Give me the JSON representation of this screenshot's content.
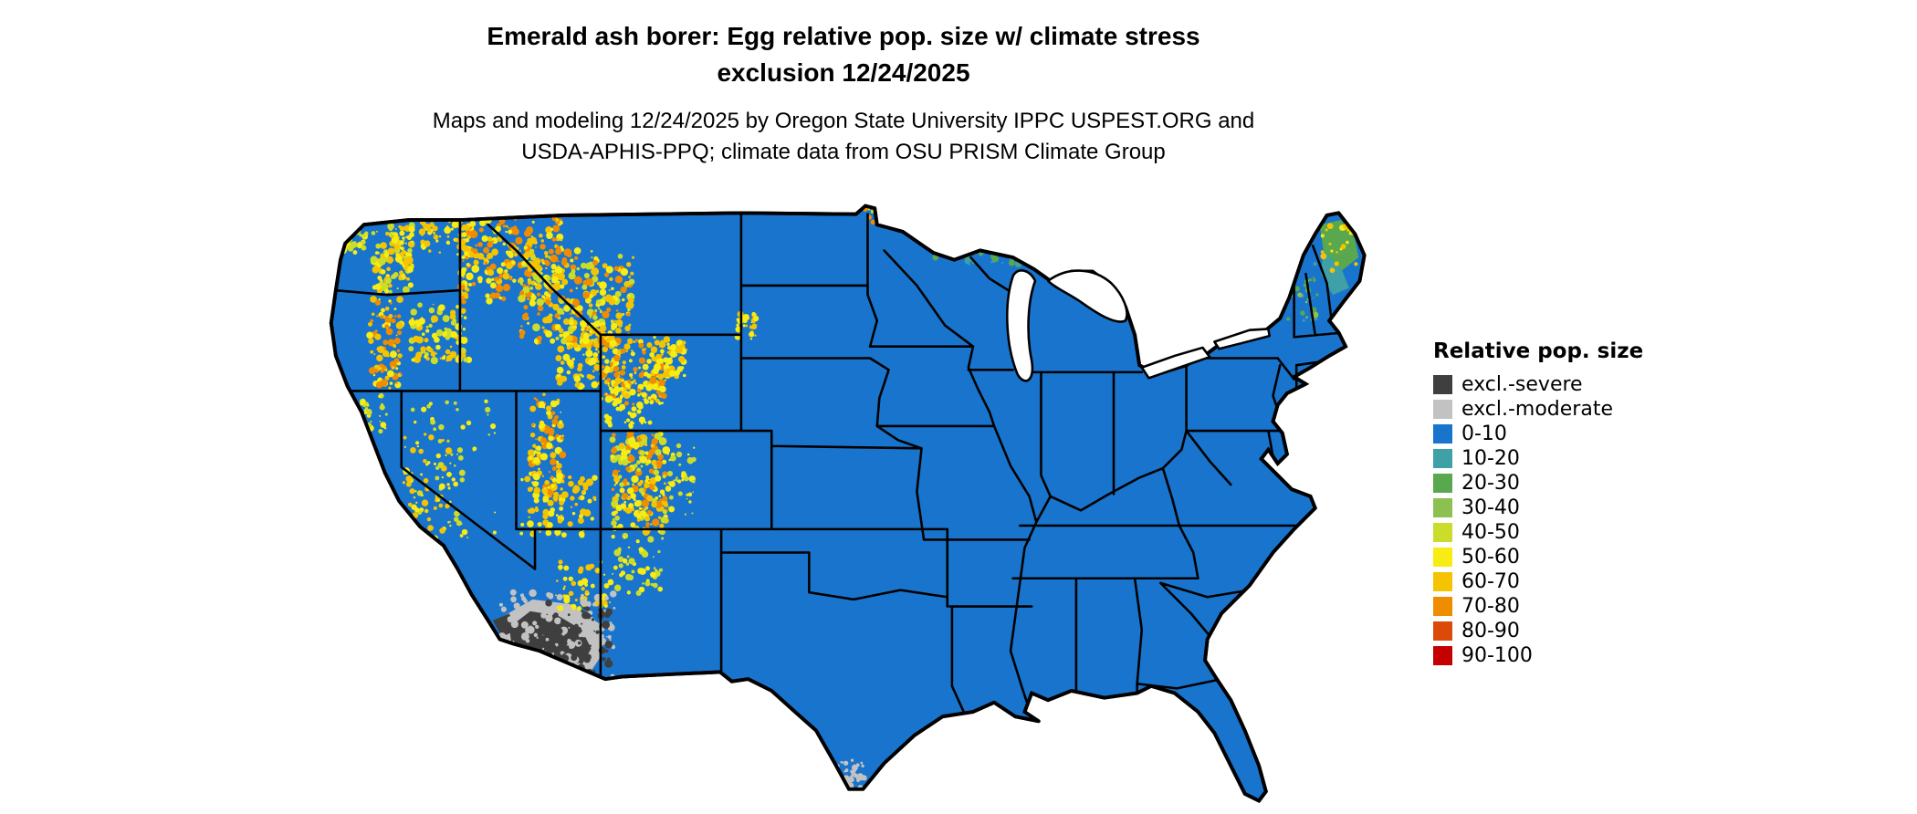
{
  "header": {
    "title_line1": "Emerald ash borer: Egg relative pop. size w/ climate stress",
    "title_line2": "exclusion 12/24/2025",
    "subtitle_line1": "Maps and modeling 12/24/2025 by Oregon State University IPPC USPEST.ORG and",
    "subtitle_line2": "USDA-APHIS-PPQ; climate data from OSU PRISM Climate Group"
  },
  "legend": {
    "title": "Relative pop. size",
    "items": [
      {
        "label": "excl.-severe",
        "color": "#3F3F3F"
      },
      {
        "label": "excl.-moderate",
        "color": "#C2C2C2"
      },
      {
        "label": "0-10",
        "color": "#1874CD"
      },
      {
        "label": "10-20",
        "color": "#3FA0A8"
      },
      {
        "label": "20-30",
        "color": "#59A84F"
      },
      {
        "label": "30-40",
        "color": "#8CC152"
      },
      {
        "label": "40-50",
        "color": "#CBDD2A"
      },
      {
        "label": "50-60",
        "color": "#F7EC13"
      },
      {
        "label": "60-70",
        "color": "#F5C400"
      },
      {
        "label": "70-80",
        "color": "#F08C00"
      },
      {
        "label": "80-90",
        "color": "#DC4A0A"
      },
      {
        "label": "90-100",
        "color": "#C40000"
      }
    ]
  },
  "map": {
    "region": "Contiguous United States",
    "base_color": "#1874CD",
    "border_color": "#000000",
    "water_color": "#FFFFFF",
    "exclusion_severe_color": "#3F3F3F",
    "exclusion_moderate_color": "#C2C2C2"
  }
}
